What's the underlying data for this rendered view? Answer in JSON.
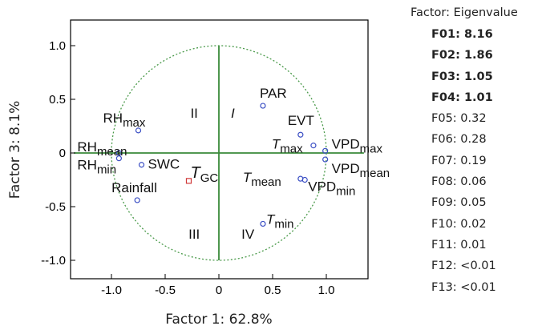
{
  "chart_data": {
    "type": "scatter",
    "xlabel": "Factor 1: 62.8%",
    "ylabel": "Factor 3: 8.1%",
    "xlim": [
      -1.4,
      1.4
    ],
    "ylim": [
      -1.2,
      1.25
    ],
    "x_ticks": [
      -1.0,
      -0.5,
      0,
      0.5,
      1.0
    ],
    "x_tick_labels": [
      "-1.0",
      "-0.5",
      "0",
      "0.5",
      "1.0"
    ],
    "y_ticks": [
      1.0,
      0.5,
      0,
      -0.5,
      -1.0
    ],
    "y_tick_labels": [
      "1.0",
      "0.5",
      "0",
      "-0.5",
      "--1.0"
    ],
    "unit_circle": true,
    "quadrant_labels": [
      {
        "text": "I",
        "x": 0.13,
        "y": 0.33,
        "italic": true
      },
      {
        "text": "II",
        "x": -0.23,
        "y": 0.33,
        "italic": false
      },
      {
        "text": "III",
        "x": -0.23,
        "y": -0.8,
        "italic": false
      },
      {
        "text": "IV",
        "x": 0.27,
        "y": -0.8,
        "italic": false
      }
    ],
    "points": [
      {
        "base": "PAR",
        "sub": "",
        "italic": false,
        "x": 0.41,
        "y": 0.44,
        "marker": "circle",
        "color": "#3b4fc4",
        "label_color": "#111111",
        "anchor": "above-left"
      },
      {
        "base": "EVT",
        "sub": "",
        "italic": false,
        "x": 0.76,
        "y": 0.17,
        "marker": "circle",
        "color": "#3b4fc4",
        "label_color": "#111111",
        "anchor": "above-left"
      },
      {
        "base": "T",
        "sub": "max",
        "italic": true,
        "x": 0.88,
        "y": 0.07,
        "marker": "circle",
        "color": "#3b4fc4",
        "label_color": "#111111",
        "anchor": "left"
      },
      {
        "base": "VPD",
        "sub": "max",
        "italic": false,
        "x": 0.99,
        "y": 0.02,
        "marker": "circle",
        "color": "#3b4fc4",
        "label_color": "#111111",
        "anchor": "right-up"
      },
      {
        "base": "VPD",
        "sub": "mean",
        "italic": false,
        "x": 0.99,
        "y": -0.06,
        "marker": "circle",
        "color": "#3b4fc4",
        "label_color": "#111111",
        "anchor": "right-down"
      },
      {
        "base": "T",
        "sub": "mean",
        "italic": true,
        "x": 0.76,
        "y": -0.24,
        "marker": "circle",
        "color": "#3b4fc4",
        "label_color": "#111111",
        "anchor": "left"
      },
      {
        "base": "VPD",
        "sub": "min",
        "italic": false,
        "x": 0.8,
        "y": -0.25,
        "marker": "circle",
        "color": "#3b4fc4",
        "label_color": "#111111",
        "anchor": "below-right"
      },
      {
        "base": "T",
        "sub": "min",
        "italic": true,
        "x": 0.41,
        "y": -0.66,
        "marker": "circle",
        "color": "#3b4fc4",
        "label_color": "#111111",
        "anchor": "right"
      },
      {
        "base": "RH",
        "sub": "max",
        "italic": false,
        "x": -0.75,
        "y": 0.21,
        "marker": "circle",
        "color": "#3b4fc4",
        "label_color": "#111111",
        "anchor": "above-left"
      },
      {
        "base": "RH",
        "sub": "mean",
        "italic": false,
        "x": -0.93,
        "y": 0.0,
        "marker": "circle",
        "color": "#3b4fc4",
        "label_color": "#111111",
        "anchor": "left-up"
      },
      {
        "base": "RH",
        "sub": "min",
        "italic": false,
        "x": -0.93,
        "y": -0.05,
        "marker": "circle",
        "color": "#3b4fc4",
        "label_color": "#111111",
        "anchor": "left-down"
      },
      {
        "base": "SWC",
        "sub": "",
        "italic": false,
        "x": -0.72,
        "y": -0.11,
        "marker": "circle",
        "color": "#3b4fc4",
        "label_color": "#111111",
        "anchor": "right"
      },
      {
        "base": "Rainfall",
        "sub": "",
        "italic": false,
        "x": -0.76,
        "y": -0.44,
        "marker": "circle",
        "color": "#3b4fc4",
        "label_color": "#111111",
        "anchor": "above"
      },
      {
        "base": "T",
        "sub": "GC",
        "italic": true,
        "x": -0.28,
        "y": -0.26,
        "marker": "square",
        "color": "#d03a3a",
        "label_color": "#d03a3a",
        "anchor": "above-right"
      }
    ],
    "grid": false,
    "legend": "none"
  },
  "eigen_table": {
    "header": "Factor: Eigenvalue",
    "rows": [
      {
        "label": "F01:",
        "value": "8.16",
        "bold": true
      },
      {
        "label": "F02:",
        "value": "1.86",
        "bold": true
      },
      {
        "label": "F03:",
        "value": "1.05",
        "bold": true
      },
      {
        "label": "F04:",
        "value": "1.01",
        "bold": true
      },
      {
        "label": "F05:",
        "value": "0.32",
        "bold": false
      },
      {
        "label": "F06:",
        "value": "0.28",
        "bold": false
      },
      {
        "label": "F07:",
        "value": "0.19",
        "bold": false
      },
      {
        "label": "F08:",
        "value": "0.06",
        "bold": false
      },
      {
        "label": "F09:",
        "value": "0.05",
        "bold": false
      },
      {
        "label": "F10:",
        "value": "0.02",
        "bold": false
      },
      {
        "label": "F11:",
        "value": "0.01",
        "bold": false
      },
      {
        "label": "F12:",
        "value": "<0.01",
        "bold": false
      },
      {
        "label": "F13:",
        "value": "<0.01",
        "bold": false
      }
    ]
  },
  "colors": {
    "axis_lines": "#3a8a3a",
    "circle": "#4a9a4a",
    "marker": "#3b4fc4",
    "highlight": "#d03a3a"
  }
}
